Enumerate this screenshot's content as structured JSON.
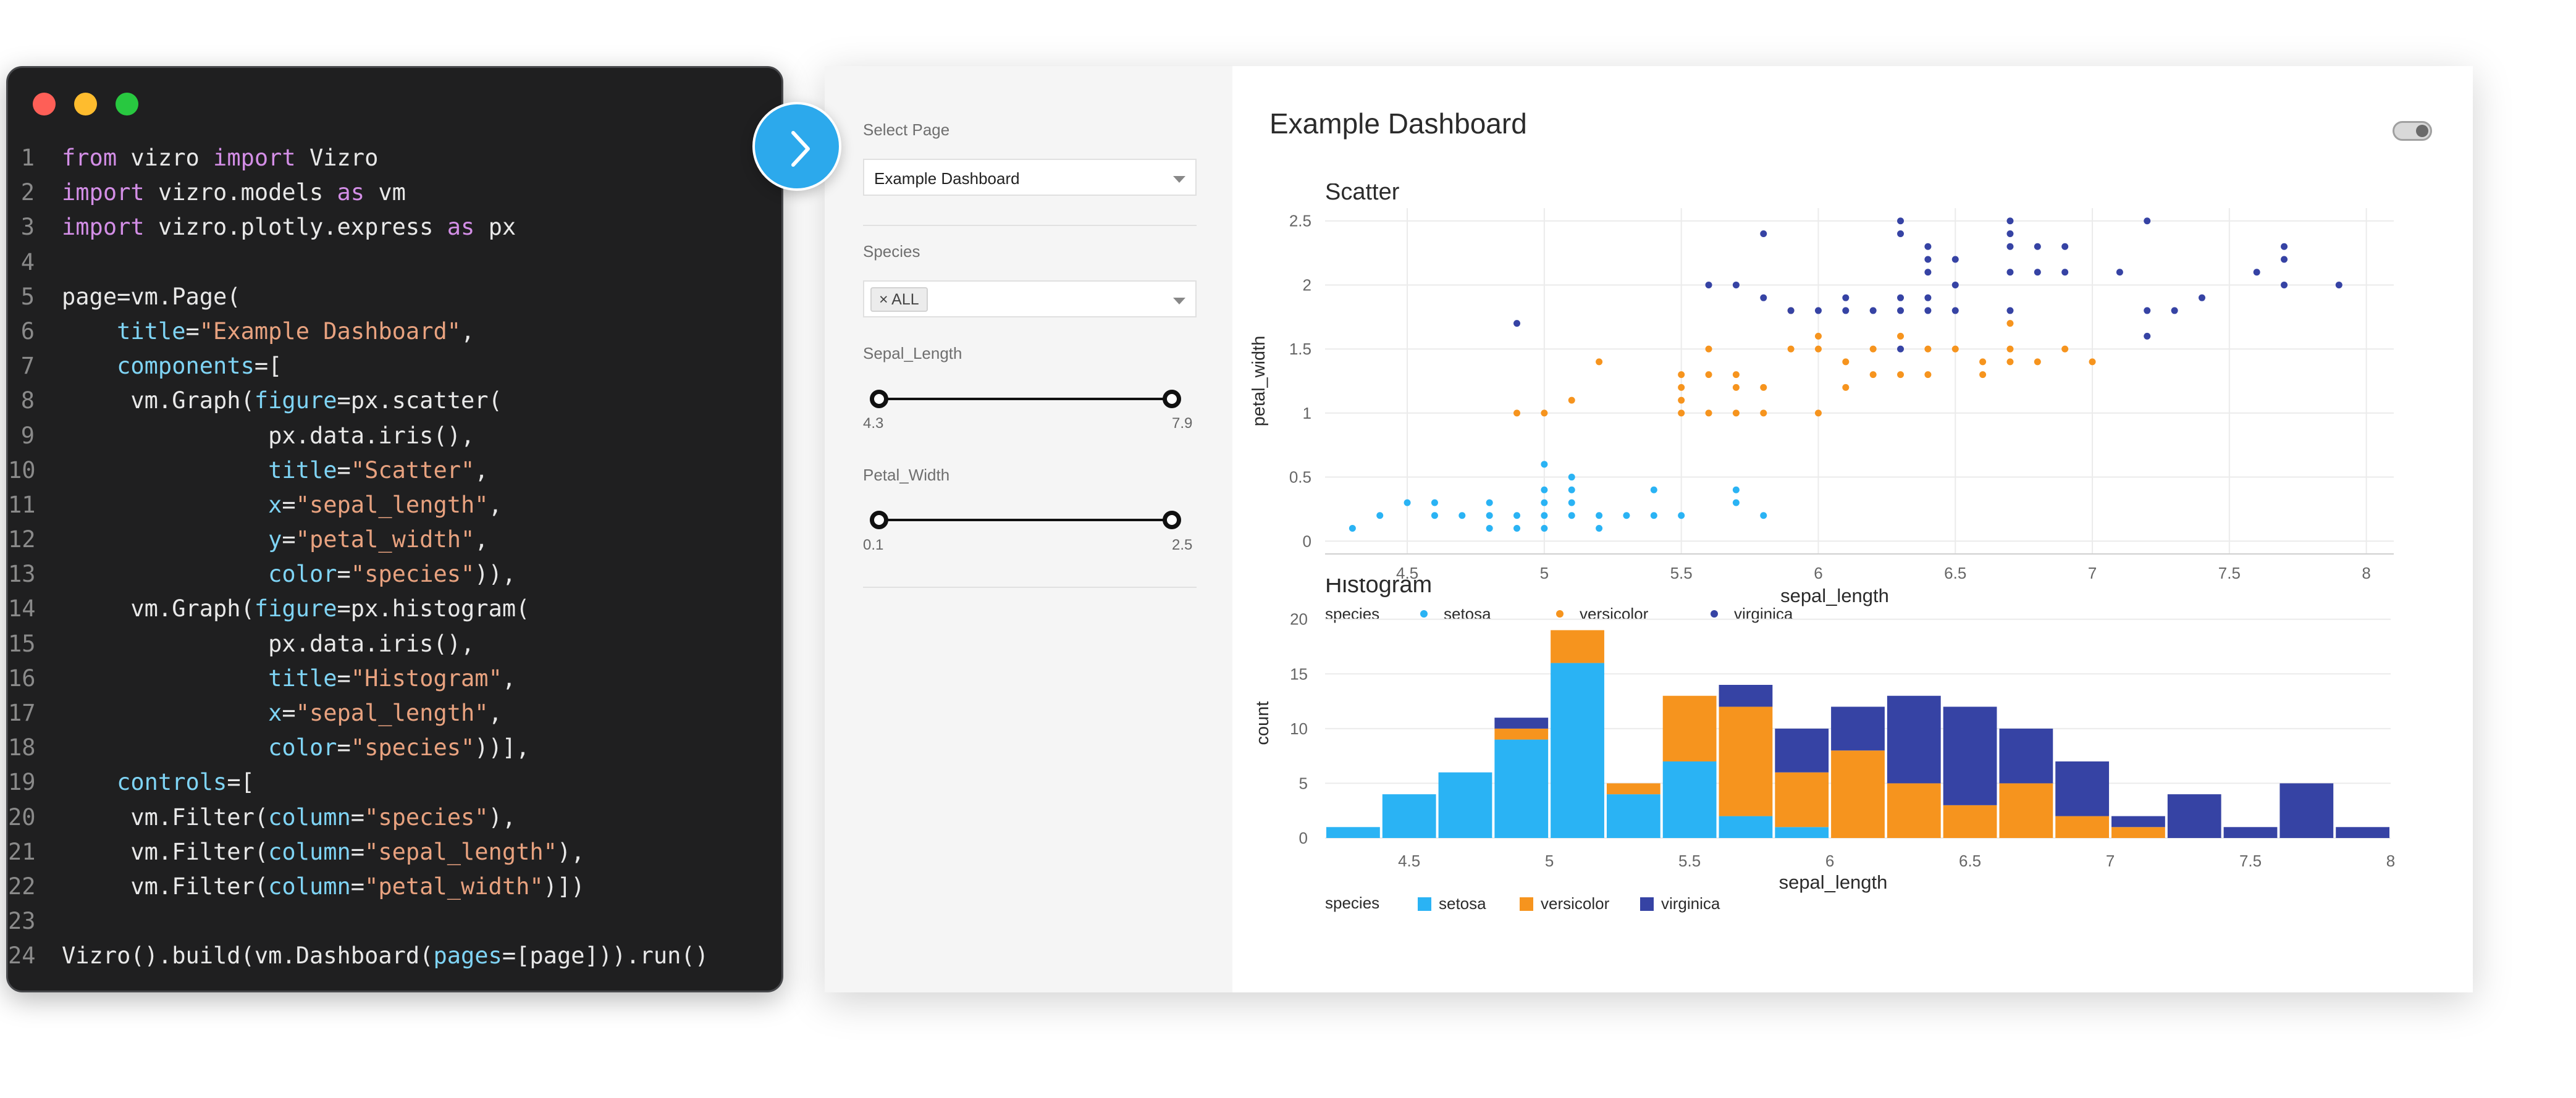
{
  "code": {
    "lines": [
      [
        [
          "kw",
          "from "
        ],
        [
          "t",
          "vizro "
        ],
        [
          "kw",
          "import "
        ],
        [
          "t",
          "Vizro"
        ]
      ],
      [
        [
          "kw",
          "import "
        ],
        [
          "t",
          "vizro.models "
        ],
        [
          "kw",
          "as "
        ],
        [
          "t",
          "vm"
        ]
      ],
      [
        [
          "kw",
          "import "
        ],
        [
          "t",
          "vizro.plotly.express "
        ],
        [
          "kw",
          "as "
        ],
        [
          "t",
          "px"
        ]
      ],
      [],
      [
        [
          "t",
          "page=vm.Page("
        ]
      ],
      [
        [
          "t",
          "    "
        ],
        [
          "arg",
          "title"
        ],
        [
          "t",
          "="
        ],
        [
          "str",
          "\"Example Dashboard\""
        ],
        [
          "t",
          ","
        ]
      ],
      [
        [
          "t",
          "    "
        ],
        [
          "arg",
          "components"
        ],
        [
          "t",
          "=["
        ]
      ],
      [
        [
          "t",
          "     vm.Graph("
        ],
        [
          "arg",
          "figure"
        ],
        [
          "t",
          "=px.scatter("
        ]
      ],
      [
        [
          "t",
          "               px.data.iris(),"
        ]
      ],
      [
        [
          "t",
          "               "
        ],
        [
          "arg",
          "title"
        ],
        [
          "t",
          "="
        ],
        [
          "str",
          "\"Scatter\""
        ],
        [
          "t",
          ","
        ]
      ],
      [
        [
          "t",
          "               "
        ],
        [
          "arg",
          "x"
        ],
        [
          "t",
          "="
        ],
        [
          "str",
          "\"sepal_length\""
        ],
        [
          "t",
          ","
        ]
      ],
      [
        [
          "t",
          "               "
        ],
        [
          "arg",
          "y"
        ],
        [
          "t",
          "="
        ],
        [
          "str",
          "\"petal_width\""
        ],
        [
          "t",
          ","
        ]
      ],
      [
        [
          "t",
          "               "
        ],
        [
          "arg",
          "color"
        ],
        [
          "t",
          "="
        ],
        [
          "str",
          "\"species\""
        ],
        [
          "t",
          ")),"
        ]
      ],
      [
        [
          "t",
          "     vm.Graph("
        ],
        [
          "arg",
          "figure"
        ],
        [
          "t",
          "=px.histogram("
        ]
      ],
      [
        [
          "t",
          "               px.data.iris(),"
        ]
      ],
      [
        [
          "t",
          "               "
        ],
        [
          "arg",
          "title"
        ],
        [
          "t",
          "="
        ],
        [
          "str",
          "\"Histogram\""
        ],
        [
          "t",
          ","
        ]
      ],
      [
        [
          "t",
          "               "
        ],
        [
          "arg",
          "x"
        ],
        [
          "t",
          "="
        ],
        [
          "str",
          "\"sepal_length\""
        ],
        [
          "t",
          ","
        ]
      ],
      [
        [
          "t",
          "               "
        ],
        [
          "arg",
          "color"
        ],
        [
          "t",
          "="
        ],
        [
          "str",
          "\"species\""
        ],
        [
          "t",
          "))],"
        ]
      ],
      [
        [
          "t",
          "    "
        ],
        [
          "arg",
          "controls"
        ],
        [
          "t",
          "=["
        ]
      ],
      [
        [
          "t",
          "     vm.Filter("
        ],
        [
          "arg",
          "column"
        ],
        [
          "t",
          "="
        ],
        [
          "str",
          "\"species\""
        ],
        [
          "t",
          "),"
        ]
      ],
      [
        [
          "t",
          "     vm.Filter("
        ],
        [
          "arg",
          "column"
        ],
        [
          "t",
          "="
        ],
        [
          "str",
          "\"sepal_length\""
        ],
        [
          "t",
          "),"
        ]
      ],
      [
        [
          "t",
          "     vm.Filter("
        ],
        [
          "arg",
          "column"
        ],
        [
          "t",
          "="
        ],
        [
          "str",
          "\"petal_width\""
        ],
        [
          "t",
          ")])"
        ]
      ],
      [],
      [
        [
          "t",
          "Vizro().build(vm.Dashboard("
        ],
        [
          "arg",
          "pages"
        ],
        [
          "t",
          "=[page])).run()"
        ]
      ]
    ]
  },
  "sidebar": {
    "select_page_label": "Select Page",
    "select_page_value": "Example Dashboard",
    "species_label": "Species",
    "species_chip": "× ALL",
    "sepal_length_label": "Sepal_Length",
    "sepal_length_min": "4.3",
    "sepal_length_max": "7.9",
    "petal_width_label": "Petal_Width",
    "petal_width_min": "0.1",
    "petal_width_max": "2.5"
  },
  "page": {
    "title": "Example Dashboard"
  },
  "colors": {
    "setosa": "#2ab3f4",
    "versicolor": "#f6941e",
    "virginica": "#3643a4"
  },
  "chart_data": [
    {
      "type": "scatter",
      "title": "Scatter",
      "xlabel": "sepal_length",
      "ylabel": "petal_width",
      "xlim": [
        4.2,
        8.1
      ],
      "ylim": [
        -0.1,
        2.6
      ],
      "xticks": [
        4.5,
        5,
        5.5,
        6,
        6.5,
        7,
        7.5,
        8
      ],
      "yticks": [
        0,
        0.5,
        1,
        1.5,
        2,
        2.5
      ],
      "grid": true,
      "legend_title": "species",
      "legend_position": "bottom",
      "series": [
        {
          "name": "setosa",
          "points": [
            [
              4.3,
              0.1
            ],
            [
              4.4,
              0.2
            ],
            [
              4.5,
              0.3
            ],
            [
              4.6,
              0.3
            ],
            [
              4.6,
              0.2
            ],
            [
              4.7,
              0.2
            ],
            [
              4.8,
              0.2
            ],
            [
              4.8,
              0.1
            ],
            [
              4.8,
              0.3
            ],
            [
              4.9,
              0.1
            ],
            [
              4.9,
              0.2
            ],
            [
              5,
              0.2
            ],
            [
              5,
              0.3
            ],
            [
              5,
              0.4
            ],
            [
              5,
              0.6
            ],
            [
              5,
              0.1
            ],
            [
              5.1,
              0.2
            ],
            [
              5.1,
              0.3
            ],
            [
              5.1,
              0.4
            ],
            [
              5.1,
              0.5
            ],
            [
              5.2,
              0.2
            ],
            [
              5.2,
              0.1
            ],
            [
              5.3,
              0.2
            ],
            [
              5.4,
              0.2
            ],
            [
              5.4,
              0.4
            ],
            [
              5.5,
              0.2
            ],
            [
              5.7,
              0.3
            ],
            [
              5.7,
              0.4
            ],
            [
              5.8,
              0.2
            ]
          ]
        },
        {
          "name": "versicolor",
          "points": [
            [
              4.9,
              1
            ],
            [
              5,
              1
            ],
            [
              5.1,
              1.1
            ],
            [
              5.2,
              1.4
            ],
            [
              5.5,
              1.3
            ],
            [
              5.5,
              1
            ],
            [
              5.5,
              1.1
            ],
            [
              5.5,
              1.2
            ],
            [
              5.6,
              1.3
            ],
            [
              5.6,
              1
            ],
            [
              5.6,
              1.5
            ],
            [
              5.7,
              1.3
            ],
            [
              5.7,
              1.2
            ],
            [
              5.7,
              1
            ],
            [
              5.8,
              1
            ],
            [
              5.8,
              1.2
            ],
            [
              5.9,
              1.5
            ],
            [
              5.9,
              1.8
            ],
            [
              6,
              1
            ],
            [
              6,
              1.5
            ],
            [
              6,
              1.6
            ],
            [
              6.1,
              1.2
            ],
            [
              6.1,
              1.4
            ],
            [
              6.2,
              1.3
            ],
            [
              6.2,
              1.5
            ],
            [
              6.3,
              1.3
            ],
            [
              6.3,
              1.6
            ],
            [
              6.4,
              1.3
            ],
            [
              6.4,
              1.5
            ],
            [
              6.5,
              1.5
            ],
            [
              6.6,
              1.3
            ],
            [
              6.6,
              1.4
            ],
            [
              6.7,
              1.4
            ],
            [
              6.7,
              1.5
            ],
            [
              6.7,
              1.7
            ],
            [
              6.8,
              1.4
            ],
            [
              6.9,
              1.5
            ],
            [
              7,
              1.4
            ]
          ]
        },
        {
          "name": "virginica",
          "points": [
            [
              4.9,
              1.7
            ],
            [
              5.6,
              2
            ],
            [
              5.7,
              2
            ],
            [
              5.8,
              1.9
            ],
            [
              5.8,
              2.4
            ],
            [
              5.9,
              1.8
            ],
            [
              6,
              1.8
            ],
            [
              6.1,
              1.8
            ],
            [
              6.1,
              1.9
            ],
            [
              6.2,
              1.8
            ],
            [
              6.3,
              1.5
            ],
            [
              6.3,
              1.8
            ],
            [
              6.3,
              1.9
            ],
            [
              6.3,
              2.4
            ],
            [
              6.3,
              2.5
            ],
            [
              6.4,
              2.3
            ],
            [
              6.4,
              1.9
            ],
            [
              6.4,
              2.1
            ],
            [
              6.4,
              2.2
            ],
            [
              6.4,
              1.8
            ],
            [
              6.5,
              2
            ],
            [
              6.5,
              1.8
            ],
            [
              6.5,
              2.2
            ],
            [
              6.7,
              2.1
            ],
            [
              6.7,
              2.3
            ],
            [
              6.7,
              2.5
            ],
            [
              6.7,
              1.8
            ],
            [
              6.7,
              2.4
            ],
            [
              6.8,
              2.1
            ],
            [
              6.8,
              2.3
            ],
            [
              6.9,
              2.3
            ],
            [
              6.9,
              2.1
            ],
            [
              7.1,
              2.1
            ],
            [
              7.2,
              1.6
            ],
            [
              7.2,
              1.8
            ],
            [
              7.2,
              2.5
            ],
            [
              7.3,
              1.8
            ],
            [
              7.4,
              1.9
            ],
            [
              7.6,
              2.1
            ],
            [
              7.7,
              2
            ],
            [
              7.7,
              2.2
            ],
            [
              7.7,
              2.3
            ],
            [
              7.9,
              2
            ]
          ]
        }
      ]
    },
    {
      "type": "bar",
      "title": "Histogram",
      "xlabel": "sepal_length",
      "ylabel": "count",
      "barmode": "stack",
      "xlim": [
        4.2,
        8.0
      ],
      "ylim": [
        0,
        21
      ],
      "xticks": [
        4.5,
        5,
        5.5,
        6,
        6.5,
        7,
        7.5,
        8
      ],
      "yticks": [
        0,
        5,
        10,
        15,
        20
      ],
      "grid": true,
      "legend_title": "species",
      "legend_position": "bottom",
      "bin_width": 0.2,
      "bin_starts": [
        4.2,
        4.4,
        4.6,
        4.8,
        5.0,
        5.2,
        5.4,
        5.6,
        5.8,
        6.0,
        6.2,
        6.4,
        6.6,
        6.8,
        7.0,
        7.2,
        7.4,
        7.6,
        7.8
      ],
      "series": [
        {
          "name": "setosa",
          "values": [
            1,
            4,
            6,
            9,
            16,
            4,
            7,
            2,
            1,
            0,
            0,
            0,
            0,
            0,
            0,
            0,
            0,
            0,
            0
          ]
        },
        {
          "name": "versicolor",
          "values": [
            0,
            0,
            0,
            1,
            3,
            1,
            6,
            10,
            5,
            8,
            5,
            3,
            5,
            2,
            1,
            0,
            0,
            0,
            0
          ]
        },
        {
          "name": "virginica",
          "values": [
            0,
            0,
            0,
            1,
            0,
            0,
            0,
            2,
            4,
            4,
            8,
            9,
            5,
            5,
            1,
            4,
            1,
            5,
            1
          ]
        }
      ]
    }
  ]
}
